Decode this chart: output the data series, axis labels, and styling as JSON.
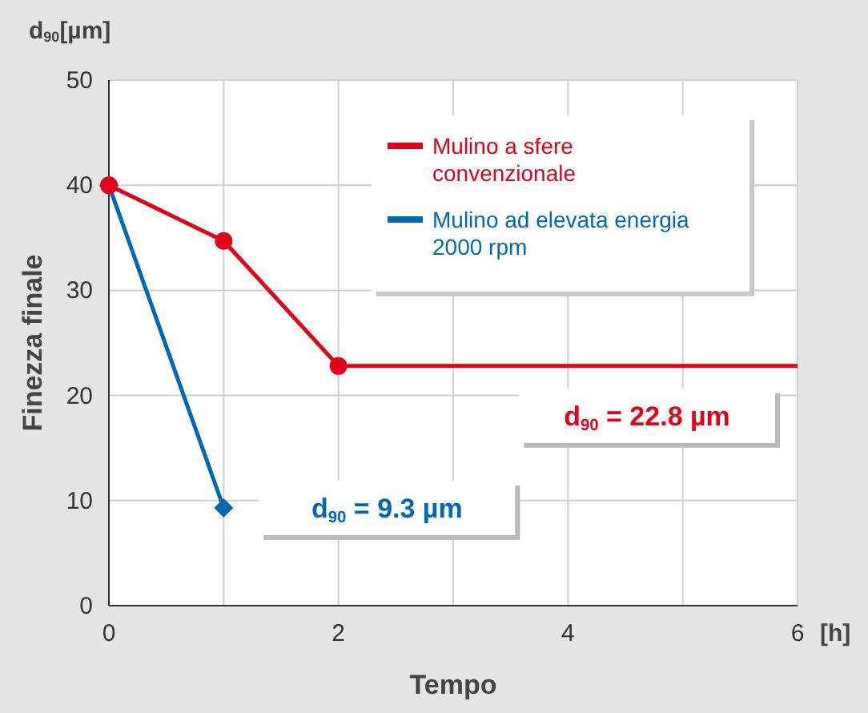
{
  "chart_data": {
    "type": "line",
    "xlabel": "Tempo",
    "ylabel": "Finezza finale",
    "x": [
      0,
      1,
      2,
      6
    ],
    "series": [
      {
        "name": "Mulino a sfere convenzionale",
        "color": "#e2001a",
        "values": [
          40,
          34.7,
          22.8,
          22.8
        ],
        "marker": "circle"
      },
      {
        "name": "Mulino ad elevata energia 2000 rpm",
        "color": "#0069b4",
        "x": [
          0,
          1
        ],
        "values": [
          40,
          9.3
        ],
        "marker": "diamond"
      }
    ],
    "xlim": [
      0,
      6
    ],
    "xticks": [
      0,
      {
        "value": 1,
        "label": null
      },
      2,
      {
        "value": 3,
        "label": null
      },
      4,
      {
        "value": 5,
        "label": null
      },
      6
    ],
    "ylim": [
      0,
      50
    ],
    "yticks": [
      0,
      10,
      20,
      30,
      40,
      50
    ],
    "grid": true,
    "legend": "top right",
    "line_style": "solid",
    "annotations": [
      "d$_{90}$[µm]",
      "[h]",
      "d$_{90}$ = 22.8 µm",
      "d$_{90}$ = 9.3 µm"
    ]
  }
}
